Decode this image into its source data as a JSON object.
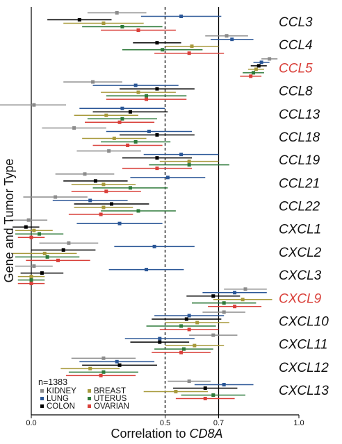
{
  "chart_data": {
    "type": "forest",
    "xlabel_prefix": "Correlation to ",
    "xlabel_italic": "CD8A",
    "ylabel": "Gene and Tumor Type",
    "xlim": [
      0.0,
      1.0
    ],
    "x_ticks": [
      "0.0",
      "0.5",
      "0.7",
      "1.0"
    ],
    "x_tick_values": [
      0.0,
      0.5,
      0.7,
      1.0
    ],
    "vlines": {
      "dashed": 0.5,
      "solid": 0.7
    },
    "n_label": "n=1383",
    "tumor_types": [
      {
        "name": "KIDNEY",
        "color": "#8c8c8c"
      },
      {
        "name": "LUNG",
        "color": "#2b5797"
      },
      {
        "name": "COLON",
        "color": "#000000"
      },
      {
        "name": "BREAST",
        "color": "#a89a3c"
      },
      {
        "name": "UTERUS",
        "color": "#2e7a3a"
      },
      {
        "name": "OVARIAN",
        "color": "#d9403a"
      }
    ],
    "highlight_color": "#d9403a",
    "genes": [
      {
        "name": "CCL3",
        "highlight": false,
        "estimates": [
          {
            "mid": 0.32,
            "lo": 0.21,
            "hi": 0.43
          },
          {
            "mid": 0.56,
            "lo": 0.41,
            "hi": 0.71
          },
          {
            "mid": 0.18,
            "lo": 0.06,
            "hi": 0.3
          },
          {
            "mid": 0.27,
            "lo": 0.12,
            "hi": 0.42
          },
          {
            "mid": 0.34,
            "lo": 0.19,
            "hi": 0.49
          },
          {
            "mid": 0.4,
            "lo": 0.26,
            "hi": 0.54
          }
        ]
      },
      {
        "name": "CCL4",
        "highlight": false,
        "estimates": [
          {
            "mid": 0.73,
            "lo": 0.65,
            "hi": 0.81
          },
          {
            "mid": 0.75,
            "lo": 0.67,
            "hi": 0.83
          },
          {
            "mid": 0.47,
            "lo": 0.38,
            "hi": 0.56
          },
          {
            "mid": 0.6,
            "lo": 0.5,
            "hi": 0.7
          },
          {
            "mid": 0.49,
            "lo": 0.34,
            "hi": 0.64
          },
          {
            "mid": 0.59,
            "lo": 0.46,
            "hi": 0.72
          }
        ]
      },
      {
        "name": "CCL5",
        "highlight": true,
        "estimates": [
          {
            "mid": 0.89,
            "lo": 0.86,
            "hi": 0.92
          },
          {
            "mid": 0.86,
            "lo": 0.83,
            "hi": 0.89
          },
          {
            "mid": 0.85,
            "lo": 0.82,
            "hi": 0.88
          },
          {
            "mid": 0.84,
            "lo": 0.81,
            "hi": 0.87
          },
          {
            "mid": 0.83,
            "lo": 0.79,
            "hi": 0.87
          },
          {
            "mid": 0.82,
            "lo": 0.78,
            "hi": 0.86
          }
        ]
      },
      {
        "name": "CCL8",
        "highlight": false,
        "estimates": [
          {
            "mid": 0.23,
            "lo": 0.12,
            "hi": 0.34
          },
          {
            "mid": 0.39,
            "lo": 0.23,
            "hi": 0.55
          },
          {
            "mid": 0.47,
            "lo": 0.33,
            "hi": 0.61
          },
          {
            "mid": 0.4,
            "lo": 0.26,
            "hi": 0.54
          },
          {
            "mid": 0.43,
            "lo": 0.28,
            "hi": 0.58
          },
          {
            "mid": 0.43,
            "lo": 0.28,
            "hi": 0.58
          }
        ]
      },
      {
        "name": "CCL13",
        "highlight": false,
        "estimates": [
          {
            "mid": 0.01,
            "lo": -0.12,
            "hi": 0.13
          },
          {
            "mid": 0.34,
            "lo": 0.18,
            "hi": 0.5
          },
          {
            "mid": 0.37,
            "lo": 0.23,
            "hi": 0.51
          },
          {
            "mid": 0.28,
            "lo": 0.16,
            "hi": 0.4
          },
          {
            "mid": 0.34,
            "lo": 0.21,
            "hi": 0.47
          },
          {
            "mid": 0.33,
            "lo": 0.2,
            "hi": 0.46
          }
        ]
      },
      {
        "name": "CCL18",
        "highlight": false,
        "estimates": [
          {
            "mid": 0.16,
            "lo": 0.04,
            "hi": 0.28
          },
          {
            "mid": 0.44,
            "lo": 0.28,
            "hi": 0.6
          },
          {
            "mid": 0.47,
            "lo": 0.33,
            "hi": 0.61
          },
          {
            "mid": 0.31,
            "lo": 0.19,
            "hi": 0.43
          },
          {
            "mid": 0.39,
            "lo": 0.26,
            "hi": 0.52
          },
          {
            "mid": 0.36,
            "lo": 0.23,
            "hi": 0.49
          }
        ]
      },
      {
        "name": "CCL19",
        "highlight": false,
        "estimates": [
          {
            "mid": 0.29,
            "lo": 0.17,
            "hi": 0.41
          },
          {
            "mid": 0.56,
            "lo": 0.42,
            "hi": 0.7
          },
          {
            "mid": 0.47,
            "lo": 0.34,
            "hi": 0.6
          },
          {
            "mid": 0.59,
            "lo": 0.48,
            "hi": 0.7
          },
          {
            "mid": 0.59,
            "lo": 0.44,
            "hi": 0.74
          },
          {
            "mid": 0.47,
            "lo": 0.34,
            "hi": 0.6
          }
        ]
      },
      {
        "name": "CCL21",
        "highlight": false,
        "estimates": [
          {
            "mid": 0.2,
            "lo": 0.09,
            "hi": 0.31
          },
          {
            "mid": 0.51,
            "lo": 0.37,
            "hi": 0.65
          },
          {
            "mid": 0.24,
            "lo": 0.12,
            "hi": 0.36
          },
          {
            "mid": 0.27,
            "lo": 0.15,
            "hi": 0.39
          },
          {
            "mid": 0.37,
            "lo": 0.23,
            "hi": 0.51
          },
          {
            "mid": 0.28,
            "lo": 0.15,
            "hi": 0.41
          }
        ]
      },
      {
        "name": "CCL22",
        "highlight": false,
        "estimates": [
          {
            "mid": 0.09,
            "lo": -0.03,
            "hi": 0.21
          },
          {
            "mid": 0.22,
            "lo": 0.08,
            "hi": 0.36
          },
          {
            "mid": 0.3,
            "lo": 0.16,
            "hi": 0.44
          },
          {
            "mid": 0.27,
            "lo": 0.16,
            "hi": 0.38
          },
          {
            "mid": 0.4,
            "lo": 0.26,
            "hi": 0.54
          },
          {
            "mid": 0.26,
            "lo": 0.14,
            "hi": 0.38
          }
        ]
      },
      {
        "name": "CXCL1",
        "highlight": false,
        "estimates": [
          {
            "mid": -0.01,
            "lo": -0.08,
            "hi": 0.06
          },
          {
            "mid": 0.33,
            "lo": 0.17,
            "hi": 0.49
          },
          {
            "mid": -0.02,
            "lo": -0.07,
            "hi": 0.03
          },
          {
            "mid": 0.01,
            "lo": -0.06,
            "hi": 0.08
          },
          {
            "mid": 0.03,
            "lo": -0.06,
            "hi": 0.12
          },
          {
            "mid": 0.0,
            "lo": -0.05,
            "hi": 0.05
          }
        ]
      },
      {
        "name": "CXCL2",
        "highlight": false,
        "estimates": [
          {
            "mid": 0.14,
            "lo": 0.03,
            "hi": 0.25
          },
          {
            "mid": 0.46,
            "lo": 0.31,
            "hi": 0.61
          },
          {
            "mid": 0.12,
            "lo": 0.0,
            "hi": 0.24
          },
          {
            "mid": 0.05,
            "lo": -0.07,
            "hi": 0.17
          },
          {
            "mid": 0.06,
            "lo": -0.06,
            "hi": 0.18
          },
          {
            "mid": 0.1,
            "lo": -0.02,
            "hi": 0.22
          }
        ]
      },
      {
        "name": "CXCL3",
        "highlight": false,
        "estimates": [
          {
            "mid": 0.01,
            "lo": -0.06,
            "hi": 0.08
          },
          {
            "mid": 0.43,
            "lo": 0.29,
            "hi": 0.57
          },
          {
            "mid": 0.04,
            "lo": -0.04,
            "hi": 0.12
          },
          {
            "mid": 0.0,
            "lo": -0.05,
            "hi": 0.05
          },
          {
            "mid": 0.0,
            "lo": -0.05,
            "hi": 0.05
          },
          {
            "mid": 0.0,
            "lo": -0.05,
            "hi": 0.05
          }
        ]
      },
      {
        "name": "CXCL9",
        "highlight": true,
        "estimates": [
          {
            "mid": 0.8,
            "lo": 0.72,
            "hi": 0.88
          },
          {
            "mid": 0.76,
            "lo": 0.64,
            "hi": 0.88
          },
          {
            "mid": 0.68,
            "lo": 0.58,
            "hi": 0.78
          },
          {
            "mid": 0.79,
            "lo": 0.68,
            "hi": 0.9
          },
          {
            "mid": 0.72,
            "lo": 0.6,
            "hi": 0.84
          },
          {
            "mid": 0.76,
            "lo": 0.66,
            "hi": 0.86
          }
        ]
      },
      {
        "name": "CXCL10",
        "highlight": false,
        "estimates": [
          {
            "mid": 0.72,
            "lo": 0.64,
            "hi": 0.8
          },
          {
            "mid": 0.59,
            "lo": 0.46,
            "hi": 0.72
          },
          {
            "mid": 0.58,
            "lo": 0.45,
            "hi": 0.71
          },
          {
            "mid": 0.62,
            "lo": 0.5,
            "hi": 0.74
          },
          {
            "mid": 0.56,
            "lo": 0.43,
            "hi": 0.69
          },
          {
            "mid": 0.59,
            "lo": 0.48,
            "hi": 0.7
          }
        ]
      },
      {
        "name": "CXCL11",
        "highlight": false,
        "estimates": [
          {
            "mid": 0.68,
            "lo": 0.59,
            "hi": 0.77
          },
          {
            "mid": 0.48,
            "lo": 0.35,
            "hi": 0.61
          },
          {
            "mid": 0.48,
            "lo": 0.37,
            "hi": 0.59
          },
          {
            "mid": 0.61,
            "lo": 0.5,
            "hi": 0.72
          },
          {
            "mid": 0.57,
            "lo": 0.46,
            "hi": 0.68
          },
          {
            "mid": 0.56,
            "lo": 0.45,
            "hi": 0.67
          }
        ]
      },
      {
        "name": "CXCL12",
        "highlight": false,
        "estimates": [
          {
            "mid": 0.27,
            "lo": 0.15,
            "hi": 0.39
          },
          {
            "mid": 0.32,
            "lo": 0.18,
            "hi": 0.46
          },
          {
            "mid": 0.33,
            "lo": 0.19,
            "hi": 0.47
          },
          {
            "mid": 0.22,
            "lo": 0.11,
            "hi": 0.33
          },
          {
            "mid": 0.27,
            "lo": 0.14,
            "hi": 0.4
          },
          {
            "mid": 0.26,
            "lo": 0.13,
            "hi": 0.39
          }
        ]
      },
      {
        "name": "CXCL13",
        "highlight": false,
        "estimates": [
          {
            "mid": 0.59,
            "lo": 0.51,
            "hi": 0.67
          },
          {
            "mid": 0.72,
            "lo": 0.61,
            "hi": 0.83
          },
          {
            "mid": 0.65,
            "lo": 0.53,
            "hi": 0.77
          },
          {
            "mid": 0.54,
            "lo": 0.42,
            "hi": 0.66
          },
          {
            "mid": 0.68,
            "lo": 0.56,
            "hi": 0.8
          },
          {
            "mid": 0.65,
            "lo": 0.54,
            "hi": 0.76
          }
        ]
      }
    ]
  }
}
